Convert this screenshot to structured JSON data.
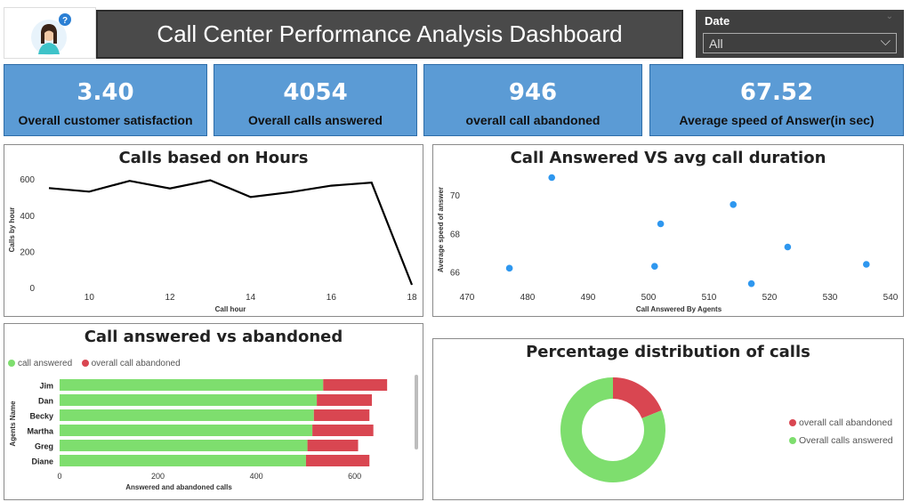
{
  "header": {
    "title": "Call Center Performance Analysis Dashboard",
    "logo_icon": "support-agent-icon",
    "more_options": "⋯"
  },
  "filter": {
    "label": "Date",
    "value": "All"
  },
  "kpis": [
    {
      "value": "3.40",
      "caption": "Overall customer satisfaction"
    },
    {
      "value": "4054",
      "caption": "Overall calls answered"
    },
    {
      "value": "946",
      "caption": "overall call abandoned"
    },
    {
      "value": "67.52",
      "caption": "Average speed of Answer(in sec)"
    }
  ],
  "colors": {
    "kpi_bg": "#5b9bd5",
    "answered": "#7ede6e",
    "abandoned": "#d94651",
    "scatter": "#2e97ef",
    "line": "#000000"
  },
  "chart_data": [
    {
      "type": "line",
      "title": "Calls based on Hours",
      "xlabel": "Call hour",
      "ylabel": "Calls by hour",
      "x": [
        9,
        10,
        11,
        12,
        13,
        14,
        15,
        16,
        17,
        18
      ],
      "y": [
        550,
        530,
        590,
        548,
        593,
        500,
        528,
        563,
        580,
        15
      ],
      "xticks": [
        10,
        12,
        14,
        16,
        18
      ],
      "yticks": [
        0,
        200,
        400,
        600
      ],
      "xlim": [
        9,
        18
      ],
      "ylim": [
        0,
        640
      ]
    },
    {
      "type": "scatter",
      "title": "Call Answered VS avg call duration",
      "xlabel": "Call Answered By Agents",
      "ylabel": "Average speed of answer",
      "points": [
        {
          "x": 477,
          "y": 66.2
        },
        {
          "x": 484,
          "y": 70.9
        },
        {
          "x": 501,
          "y": 66.3
        },
        {
          "x": 502,
          "y": 68.5
        },
        {
          "x": 514,
          "y": 69.5
        },
        {
          "x": 517,
          "y": 65.4
        },
        {
          "x": 523,
          "y": 67.3
        },
        {
          "x": 536,
          "y": 66.4
        }
      ],
      "xticks": [
        470,
        480,
        490,
        500,
        510,
        520,
        530,
        540
      ],
      "yticks": [
        66,
        68,
        70
      ],
      "xlim": [
        470,
        540
      ],
      "ylim": [
        65.2,
        71.2
      ]
    },
    {
      "type": "bar",
      "orientation": "horizontal",
      "stacked": true,
      "title": "Call answered vs abandoned",
      "xlabel": "Answered and abandoned calls",
      "ylabel": "Agents Name",
      "categories": [
        "Jim",
        "Dan",
        "Becky",
        "Martha",
        "Greg",
        "Diane"
      ],
      "series": [
        {
          "name": "call answered",
          "values": [
            536,
            523,
            517,
            514,
            504,
            501
          ]
        },
        {
          "name": "overall call abandoned",
          "values": [
            130,
            112,
            113,
            124,
            103,
            129
          ]
        }
      ],
      "xticks": [
        0,
        200,
        400,
        600
      ],
      "xlim": [
        0,
        720
      ],
      "legend": "top-left"
    },
    {
      "type": "pie",
      "donut": true,
      "title": "Percentage distribution of calls",
      "slices": [
        {
          "name": "overall call abandoned",
          "value": 946
        },
        {
          "name": "Overall calls answered",
          "value": 4054
        }
      ],
      "legend": "right"
    }
  ]
}
